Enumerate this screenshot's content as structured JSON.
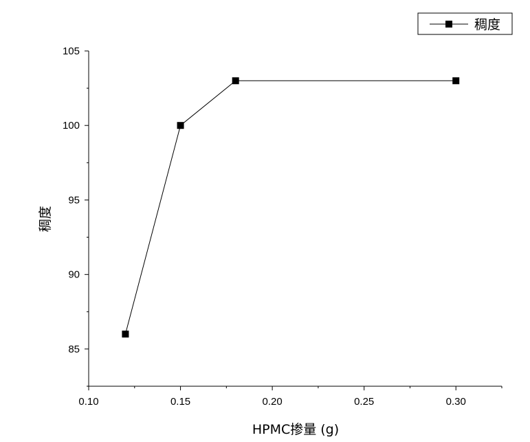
{
  "chart_data": {
    "type": "line",
    "title": "",
    "xlabel": "HPMC掺量 (g)",
    "ylabel": "稠度",
    "xlim": [
      0.1,
      0.325
    ],
    "ylim": [
      82.5,
      105
    ],
    "x_ticks": [
      "0.10",
      "0.15",
      "0.20",
      "0.25",
      "0.30"
    ],
    "y_ticks": [
      "85",
      "90",
      "95",
      "100",
      "105"
    ],
    "grid": false,
    "legend": {
      "position": "top-right"
    },
    "series": [
      {
        "name": "稠度",
        "marker": "square",
        "color": "#000000",
        "x": [
          0.12,
          0.15,
          0.18,
          0.3
        ],
        "y": [
          86,
          100,
          103,
          103
        ]
      }
    ]
  }
}
